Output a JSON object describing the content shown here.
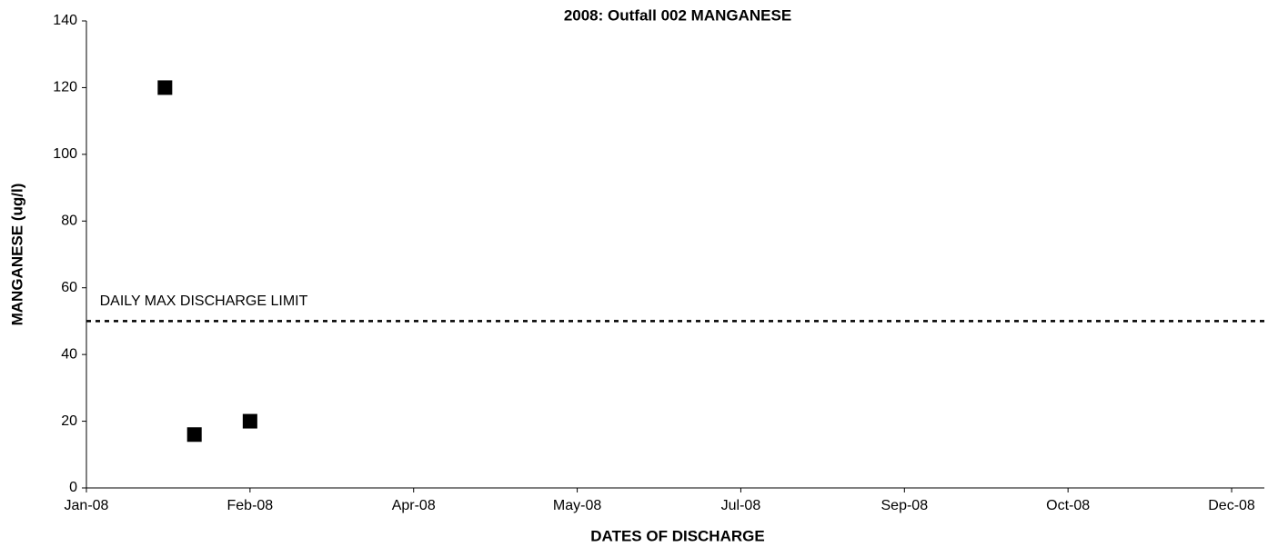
{
  "chart_data": {
    "type": "scatter",
    "title": "2008: Outfall 002 MANGANESE",
    "x_label": "DATES OF DISCHARGE",
    "y_label": "MANGANESE (ug/l)",
    "x": [
      24,
      33,
      50
    ],
    "values": [
      120,
      16,
      20
    ],
    "color": "#000000",
    "marker": "square",
    "xlim": [
      0,
      360
    ],
    "xticks": [
      {
        "value": 0,
        "label": "Jan-08"
      },
      {
        "value": 50,
        "label": "Feb-08"
      },
      {
        "value": 100,
        "label": "Apr-08"
      },
      {
        "value": 150,
        "label": "May-08"
      },
      {
        "value": 200,
        "label": "Jul-08"
      },
      {
        "value": 250,
        "label": "Sep-08"
      },
      {
        "value": 300,
        "label": "Oct-08"
      },
      {
        "value": 350,
        "label": "Dec-08"
      }
    ],
    "ylim": [
      0,
      140
    ],
    "yticks": [
      0,
      20,
      40,
      60,
      80,
      100,
      120,
      140
    ],
    "reference_line": {
      "value": 50,
      "label": "DAILY MAX DISCHARGE LIMIT",
      "color": "#000000",
      "dashed": true
    }
  }
}
